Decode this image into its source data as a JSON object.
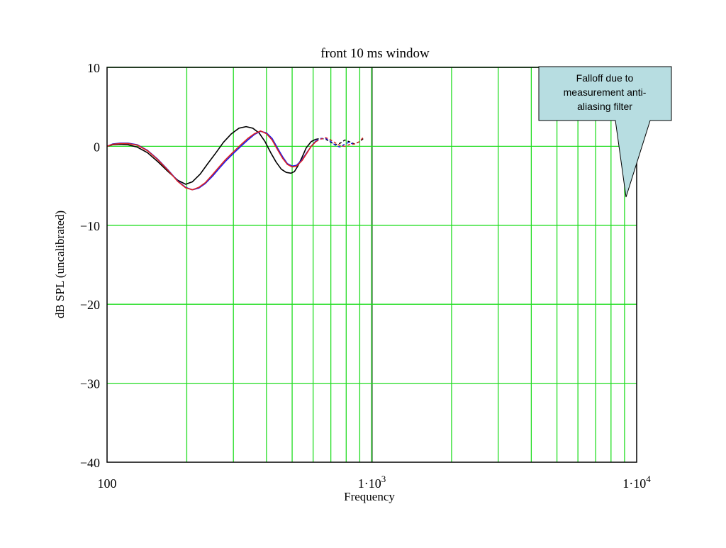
{
  "chart_data": {
    "type": "line",
    "title": "front 10 ms window",
    "xlabel": "Frequency",
    "ylabel": "dB SPL (uncalibrated)",
    "x_scale": "log",
    "xlim": [
      100,
      10000
    ],
    "ylim": [
      -40,
      10
    ],
    "grid": true,
    "x_ticks": [
      {
        "value": 100,
        "base": "100",
        "sup": ""
      },
      {
        "value": 1000,
        "base": "1·10",
        "sup": "3"
      },
      {
        "value": 10000,
        "base": "1·10",
        "sup": "4"
      }
    ],
    "y_ticks": [
      {
        "value": 10,
        "label": "10"
      },
      {
        "value": 0,
        "label": "0"
      },
      {
        "value": -10,
        "label": "−10"
      },
      {
        "value": -20,
        "label": "−20"
      },
      {
        "value": -30,
        "label": "−30"
      },
      {
        "value": -40,
        "label": "−40"
      }
    ],
    "colors": {
      "grid": "#22dd22",
      "axis": "#000000",
      "callout_fill": "#b7dde1"
    },
    "series": [
      {
        "color": "#000000",
        "x": [
          100,
          105,
          112,
          120,
          130,
          142,
          155,
          170,
          185,
          198,
          210,
          225,
          240,
          258,
          275,
          295,
          315,
          335,
          355,
          375,
          395,
          415,
          435,
          455,
          475,
          495,
          510,
          525,
          545,
          565,
          590,
          615
        ],
        "y": [
          0,
          0.2,
          0.25,
          0.2,
          -0.1,
          -0.8,
          -1.9,
          -3.2,
          -4.3,
          -4.8,
          -4.5,
          -3.5,
          -2.2,
          -0.8,
          0.5,
          1.6,
          2.3,
          2.5,
          2.3,
          1.7,
          0.6,
          -0.8,
          -2.0,
          -2.9,
          -3.3,
          -3.4,
          -3.2,
          -2.5,
          -1.4,
          -0.2,
          0.6,
          0.9
        ]
      },
      {
        "color": "#1a1aee",
        "x": [
          100,
          105,
          112,
          120,
          130,
          142,
          155,
          170,
          185,
          198,
          210,
          222,
          235,
          250,
          265,
          280,
          300,
          320,
          340,
          360,
          380,
          400,
          420,
          440,
          460,
          480,
          500,
          520,
          545,
          565,
          590,
          615
        ],
        "y": [
          0,
          0.3,
          0.4,
          0.4,
          0.2,
          -0.5,
          -1.6,
          -3.0,
          -4.4,
          -5.2,
          -5.5,
          -5.3,
          -4.7,
          -3.8,
          -2.8,
          -1.9,
          -0.9,
          0.0,
          0.8,
          1.5,
          1.9,
          1.7,
          1.0,
          -0.2,
          -1.3,
          -2.2,
          -2.5,
          -2.4,
          -1.7,
          -0.9,
          0.0,
          0.7
        ]
      },
      {
        "color": "#dd2222",
        "x": [
          100,
          105,
          112,
          120,
          130,
          142,
          155,
          170,
          185,
          198,
          210,
          222,
          235,
          250,
          265,
          280,
          300,
          320,
          340,
          360,
          380,
          400,
          420,
          440,
          460,
          480,
          500,
          520,
          545,
          565,
          590,
          615
        ],
        "y": [
          0,
          0.25,
          0.35,
          0.35,
          0.15,
          -0.55,
          -1.65,
          -3.05,
          -4.45,
          -5.25,
          -5.5,
          -5.2,
          -4.6,
          -3.6,
          -2.6,
          -1.7,
          -0.7,
          0.2,
          1.0,
          1.6,
          1.95,
          1.6,
          0.8,
          -0.4,
          -1.5,
          -2.3,
          -2.6,
          -2.5,
          -1.8,
          -1.0,
          0.0,
          0.6
        ]
      }
    ],
    "dashed_series": [
      {
        "color": "#000000",
        "x": [
          615,
          640,
          670,
          700,
          730,
          760,
          790,
          820,
          860,
          900,
          930
        ],
        "y": [
          0.9,
          1.0,
          0.9,
          0.5,
          0.2,
          0.4,
          0.8,
          0.6,
          0.3,
          0.6,
          1.0
        ]
      },
      {
        "color": "#1a1aee",
        "x": [
          615,
          640,
          670,
          700,
          730,
          760,
          790,
          820,
          860
        ],
        "y": [
          0.7,
          1.0,
          1.0,
          0.6,
          0.1,
          -0.1,
          0.3,
          0.5,
          0.2
        ]
      },
      {
        "color": "#dd2222",
        "x": [
          615,
          640,
          670,
          700,
          730,
          760,
          790,
          820,
          860,
          900,
          930
        ],
        "y": [
          0.6,
          0.9,
          1.1,
          0.8,
          0.4,
          0.1,
          0.0,
          0.2,
          0.3,
          0.6,
          1.2
        ]
      }
    ],
    "annotations": [
      {
        "text_lines": [
          "Falloff due to",
          "measurement anti-",
          "aliasing filter"
        ],
        "pointer_x": 9000,
        "pointer_y": -6.5
      }
    ]
  }
}
